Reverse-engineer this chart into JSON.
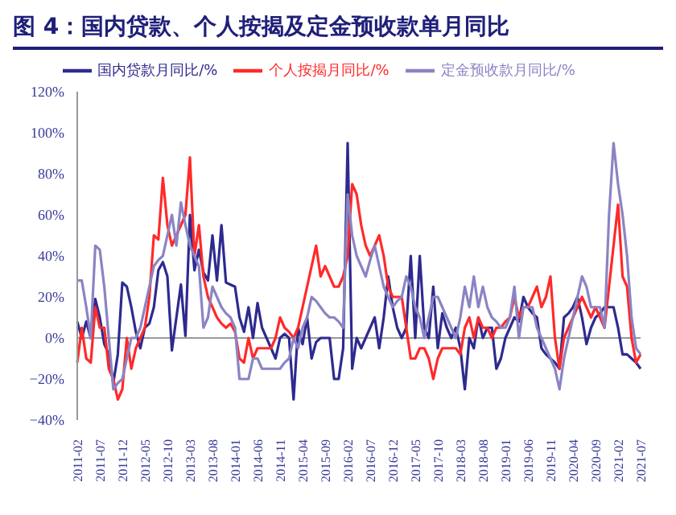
{
  "chart_data": {
    "type": "line",
    "title": "图 4：国内贷款、个人按揭及定金预收款单月同比",
    "categories": [
      "2011-02",
      null,
      null,
      null,
      null,
      "2011-07",
      null,
      null,
      null,
      null,
      "2011-12",
      null,
      null,
      null,
      null,
      "2012-05",
      null,
      null,
      null,
      null,
      "2012-10",
      null,
      null,
      null,
      null,
      "2013-03",
      null,
      null,
      null,
      null,
      "2013-08",
      null,
      null,
      null,
      null,
      "2014-01",
      null,
      null,
      null,
      null,
      "2014-06",
      null,
      null,
      null,
      null,
      "2014-11",
      null,
      null,
      null,
      null,
      "2015-04",
      null,
      null,
      null,
      null,
      "2015-09",
      null,
      null,
      null,
      null,
      "2016-02",
      null,
      null,
      null,
      null,
      "2016-07",
      null,
      null,
      null,
      null,
      "2016-12",
      null,
      null,
      null,
      null,
      "2017-05",
      null,
      null,
      null,
      null,
      "2017-10",
      null,
      null,
      null,
      null,
      "2018-03",
      null,
      null,
      null,
      null,
      "2018-08",
      null,
      null,
      null,
      null,
      "2019-01",
      null,
      null,
      null,
      null,
      "2019-06",
      null,
      null,
      null,
      null,
      "2019-11",
      null,
      null,
      null,
      null,
      "2020-04",
      null,
      null,
      null,
      null,
      "2020-09",
      null,
      null,
      null,
      null,
      "2021-02",
      null,
      null,
      null,
      null,
      "2021-07"
    ],
    "series": [
      {
        "name": "国内贷款月同比/%",
        "color": "#2e2a8f",
        "values": [
          8,
          0,
          8,
          0,
          19,
          10,
          -3,
          -8,
          -22,
          -8,
          27,
          25,
          15,
          3,
          -5,
          5,
          7,
          15,
          33,
          37,
          30,
          -6,
          10,
          26,
          1,
          60,
          33,
          43,
          32,
          28,
          50,
          28,
          55,
          27,
          26,
          25,
          10,
          3,
          15,
          0,
          17,
          5,
          0,
          -5,
          -10,
          0,
          2,
          0,
          -30,
          5,
          -3,
          10,
          -10,
          -2,
          0,
          0,
          0,
          -20,
          -20,
          -5,
          95,
          -15,
          0,
          -5,
          0,
          5,
          10,
          -5,
          10,
          30,
          15,
          5,
          0,
          5,
          40,
          0,
          40,
          5,
          0,
          25,
          -5,
          12,
          5,
          0,
          5,
          -5,
          -25,
          0,
          -5,
          10,
          0,
          5,
          5,
          -15,
          -10,
          0,
          5,
          10,
          8,
          20,
          15,
          12,
          10,
          -5,
          -8,
          -10,
          -12,
          -15,
          10,
          12,
          15,
          20,
          10,
          -3,
          5,
          10,
          12,
          15,
          15,
          15,
          5,
          -8,
          -8,
          -10,
          -12,
          -15
        ]
      },
      {
        "name": "个人按揭月同比/%",
        "color": "#ff2a2a",
        "values": [
          -12,
          5,
          -10,
          -12,
          15,
          5,
          5,
          -15,
          -20,
          -30,
          -25,
          0,
          -15,
          -5,
          0,
          5,
          20,
          50,
          48,
          78,
          55,
          45,
          50,
          55,
          60,
          88,
          40,
          55,
          30,
          20,
          15,
          10,
          7,
          5,
          7,
          3,
          -10,
          -12,
          0,
          -10,
          -5,
          -5,
          -5,
          -5,
          0,
          10,
          5,
          3,
          0,
          5,
          15,
          25,
          35,
          45,
          30,
          35,
          30,
          25,
          25,
          30,
          40,
          75,
          70,
          55,
          45,
          40,
          45,
          50,
          40,
          25,
          20,
          20,
          20,
          5,
          -10,
          -10,
          -5,
          -5,
          -10,
          -20,
          -10,
          -5,
          -5,
          -5,
          -5,
          -8,
          5,
          10,
          0,
          10,
          5,
          5,
          0,
          5,
          5,
          8,
          10,
          20,
          10,
          15,
          15,
          20,
          25,
          15,
          20,
          30,
          0,
          -15,
          0,
          5,
          10,
          15,
          20,
          15,
          10,
          15,
          10,
          5,
          25,
          45,
          65,
          30,
          25,
          0,
          -12,
          -8
        ]
      },
      {
        "name": "定金预收款月同比/%",
        "color": "#8a84c4",
        "values": [
          28,
          28,
          15,
          0,
          45,
          43,
          25,
          0,
          -25,
          -22,
          -20,
          -10,
          0,
          0,
          5,
          15,
          25,
          35,
          38,
          40,
          50,
          60,
          45,
          66,
          55,
          45,
          40,
          35,
          5,
          10,
          25,
          20,
          15,
          12,
          10,
          5,
          -20,
          -20,
          -20,
          -10,
          -10,
          -15,
          -15,
          -15,
          -15,
          -15,
          -12,
          -10,
          0,
          -5,
          5,
          10,
          20,
          18,
          15,
          12,
          10,
          10,
          8,
          5,
          70,
          50,
          40,
          35,
          30,
          38,
          45,
          35,
          25,
          20,
          15,
          18,
          20,
          30,
          25,
          15,
          10,
          0,
          10,
          20,
          20,
          15,
          10,
          5,
          0,
          10,
          25,
          15,
          30,
          15,
          25,
          15,
          10,
          8,
          5,
          5,
          10,
          25,
          0,
          15,
          15,
          15,
          5,
          0,
          -5,
          -10,
          -15,
          -25,
          -10,
          0,
          10,
          20,
          30,
          25,
          15,
          15,
          15,
          5,
          60,
          95,
          75,
          60,
          40,
          10,
          -5,
          -8
        ]
      }
    ],
    "ylim": [
      -40,
      120
    ],
    "yticks": [
      {
        "value": -40,
        "label": "−40%"
      },
      {
        "value": -20,
        "label": "−20%"
      },
      {
        "value": 0,
        "label": "0%"
      },
      {
        "value": 20,
        "label": "20%"
      },
      {
        "value": 40,
        "label": "40%"
      },
      {
        "value": 60,
        "label": "60%"
      },
      {
        "value": 80,
        "label": "80%"
      },
      {
        "value": 100,
        "label": "100%"
      },
      {
        "value": 120,
        "label": "120%"
      }
    ],
    "ref_lines": [
      {
        "axis": "y",
        "value": 0,
        "color": "#999999"
      }
    ],
    "legend": "top",
    "grid": false,
    "marker": "none",
    "line_style": "solid"
  }
}
